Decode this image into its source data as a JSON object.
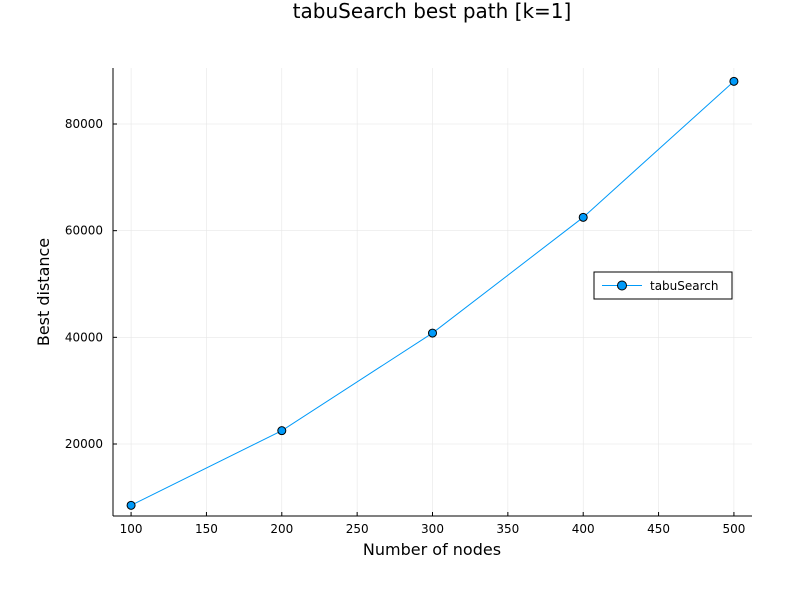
{
  "chart_data": {
    "type": "line",
    "title": "tabuSearch best path [k=1]",
    "xlabel": "Number of nodes",
    "ylabel": "Best distance",
    "x_ticks": [
      100,
      150,
      200,
      250,
      300,
      350,
      400,
      450,
      500
    ],
    "y_ticks": [
      20000,
      40000,
      60000,
      80000
    ],
    "xlim": [
      88,
      512
    ],
    "ylim": [
      6500,
      90500
    ],
    "grid": true,
    "legend_position": "right",
    "series": [
      {
        "name": "tabuSearch",
        "color": "#009AF9",
        "marker": "circle",
        "x": [
          100,
          200,
          300,
          400,
          500
        ],
        "y": [
          8500,
          22500,
          40800,
          62500,
          88000
        ]
      }
    ]
  }
}
